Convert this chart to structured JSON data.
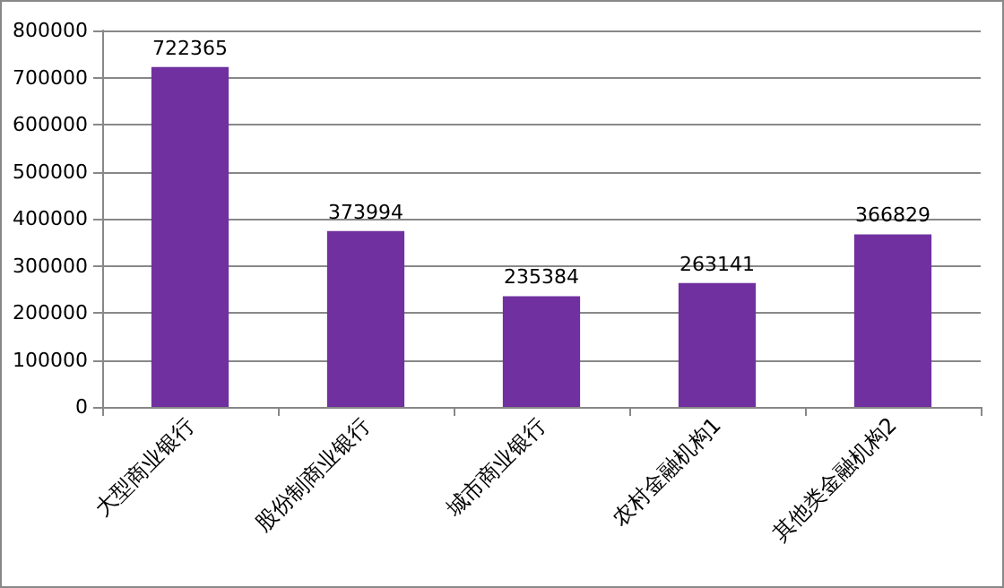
{
  "chart_data": {
    "type": "bar",
    "categories": [
      "大型商业银行",
      "股份制商业银行",
      "城市商业银行",
      "农村金融机构1",
      "其他类金融机构2"
    ],
    "values": [
      722365,
      373994,
      235384,
      263141,
      366829
    ],
    "color": "#7030a0",
    "ylim": [
      0,
      800000
    ],
    "yticks": [
      0,
      100000,
      200000,
      300000,
      400000,
      500000,
      600000,
      700000,
      800000
    ],
    "grid": "y",
    "data_labels": true
  }
}
